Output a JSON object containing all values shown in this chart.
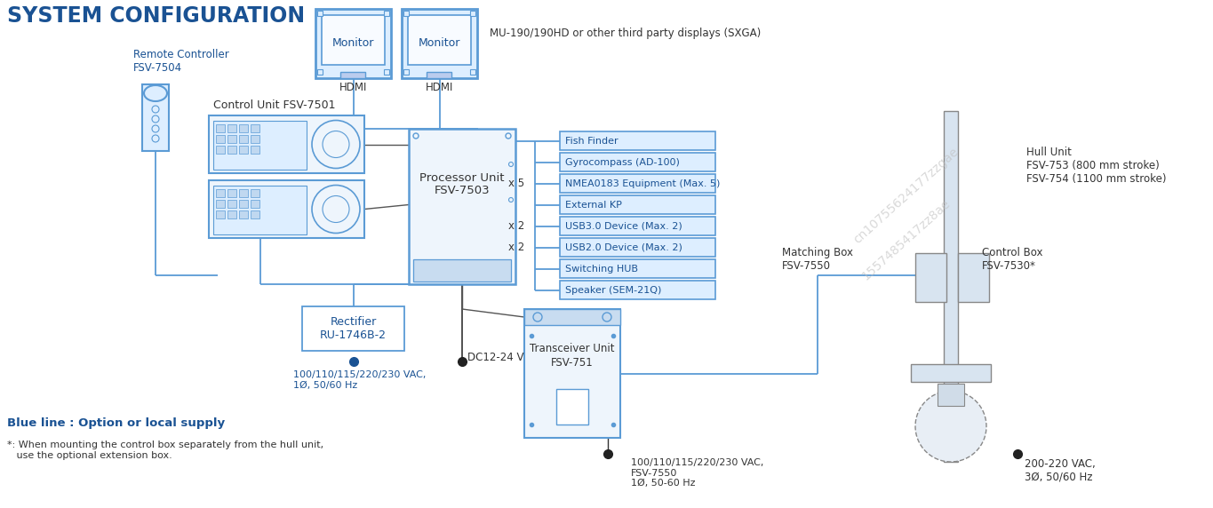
{
  "title": "SYSTEM CONFIGURATION",
  "title_color": "#1a5293",
  "bg_color": "#ffffff",
  "line_color": "#5b9bd5",
  "dark_line_color": "#1a5293",
  "box_border_color": "#5b9bd5",
  "monitor_note": "MU-190/190HD or other third party displays (SXGA)",
  "remote_label": "Remote Controller\nFSV-7504",
  "control_unit_label": "Control Unit FSV-7501",
  "processor_label": "Processor Unit\nFSV-7503",
  "rectifier_label": "Rectifier\nRU-1746B-2",
  "transceiver_label": "Transceiver Unit\nFSV-751",
  "matching_box_label": "Matching Box\nFSV-7550",
  "control_box_label": "Control Box\nFSV-7530*",
  "hull_unit_label": "Hull Unit\nFSV-753 (800 mm stroke)\nFSV-754 (1100 mm stroke)",
  "power_label1": "100/110/115/220/230 VAC,\n1Ø, 50/60 Hz",
  "power_label2": "DC12-24 V",
  "power_label3": "100/110/115/220/230 VAC,\nFSV-7550\n1Ø, 50-60 Hz",
  "power_label4": "200-220 VAC,\n3Ø, 50/60 Hz",
  "blue_line_note": "Blue line : Option or local supply",
  "footnote": "*: When mounting the control box separately from the hull unit,\n   use the optional extension box.",
  "io_boxes": [
    "Fish Finder",
    "Gyrocompass (AD-100)",
    "NMEA0183 Equipment (Max. 5)",
    "External KP",
    "USB3.0 Device (Max. 2)",
    "USB2.0 Device (Max. 2)",
    "Switching HUB",
    "Speaker (SEM-21Q)"
  ],
  "io_multipliers": [
    "",
    "",
    "x 5",
    "",
    "x 2",
    "x 2",
    "",
    ""
  ],
  "watermark1": "cn10755624177zzgae",
  "watermark2": "1557485417zz8ae"
}
